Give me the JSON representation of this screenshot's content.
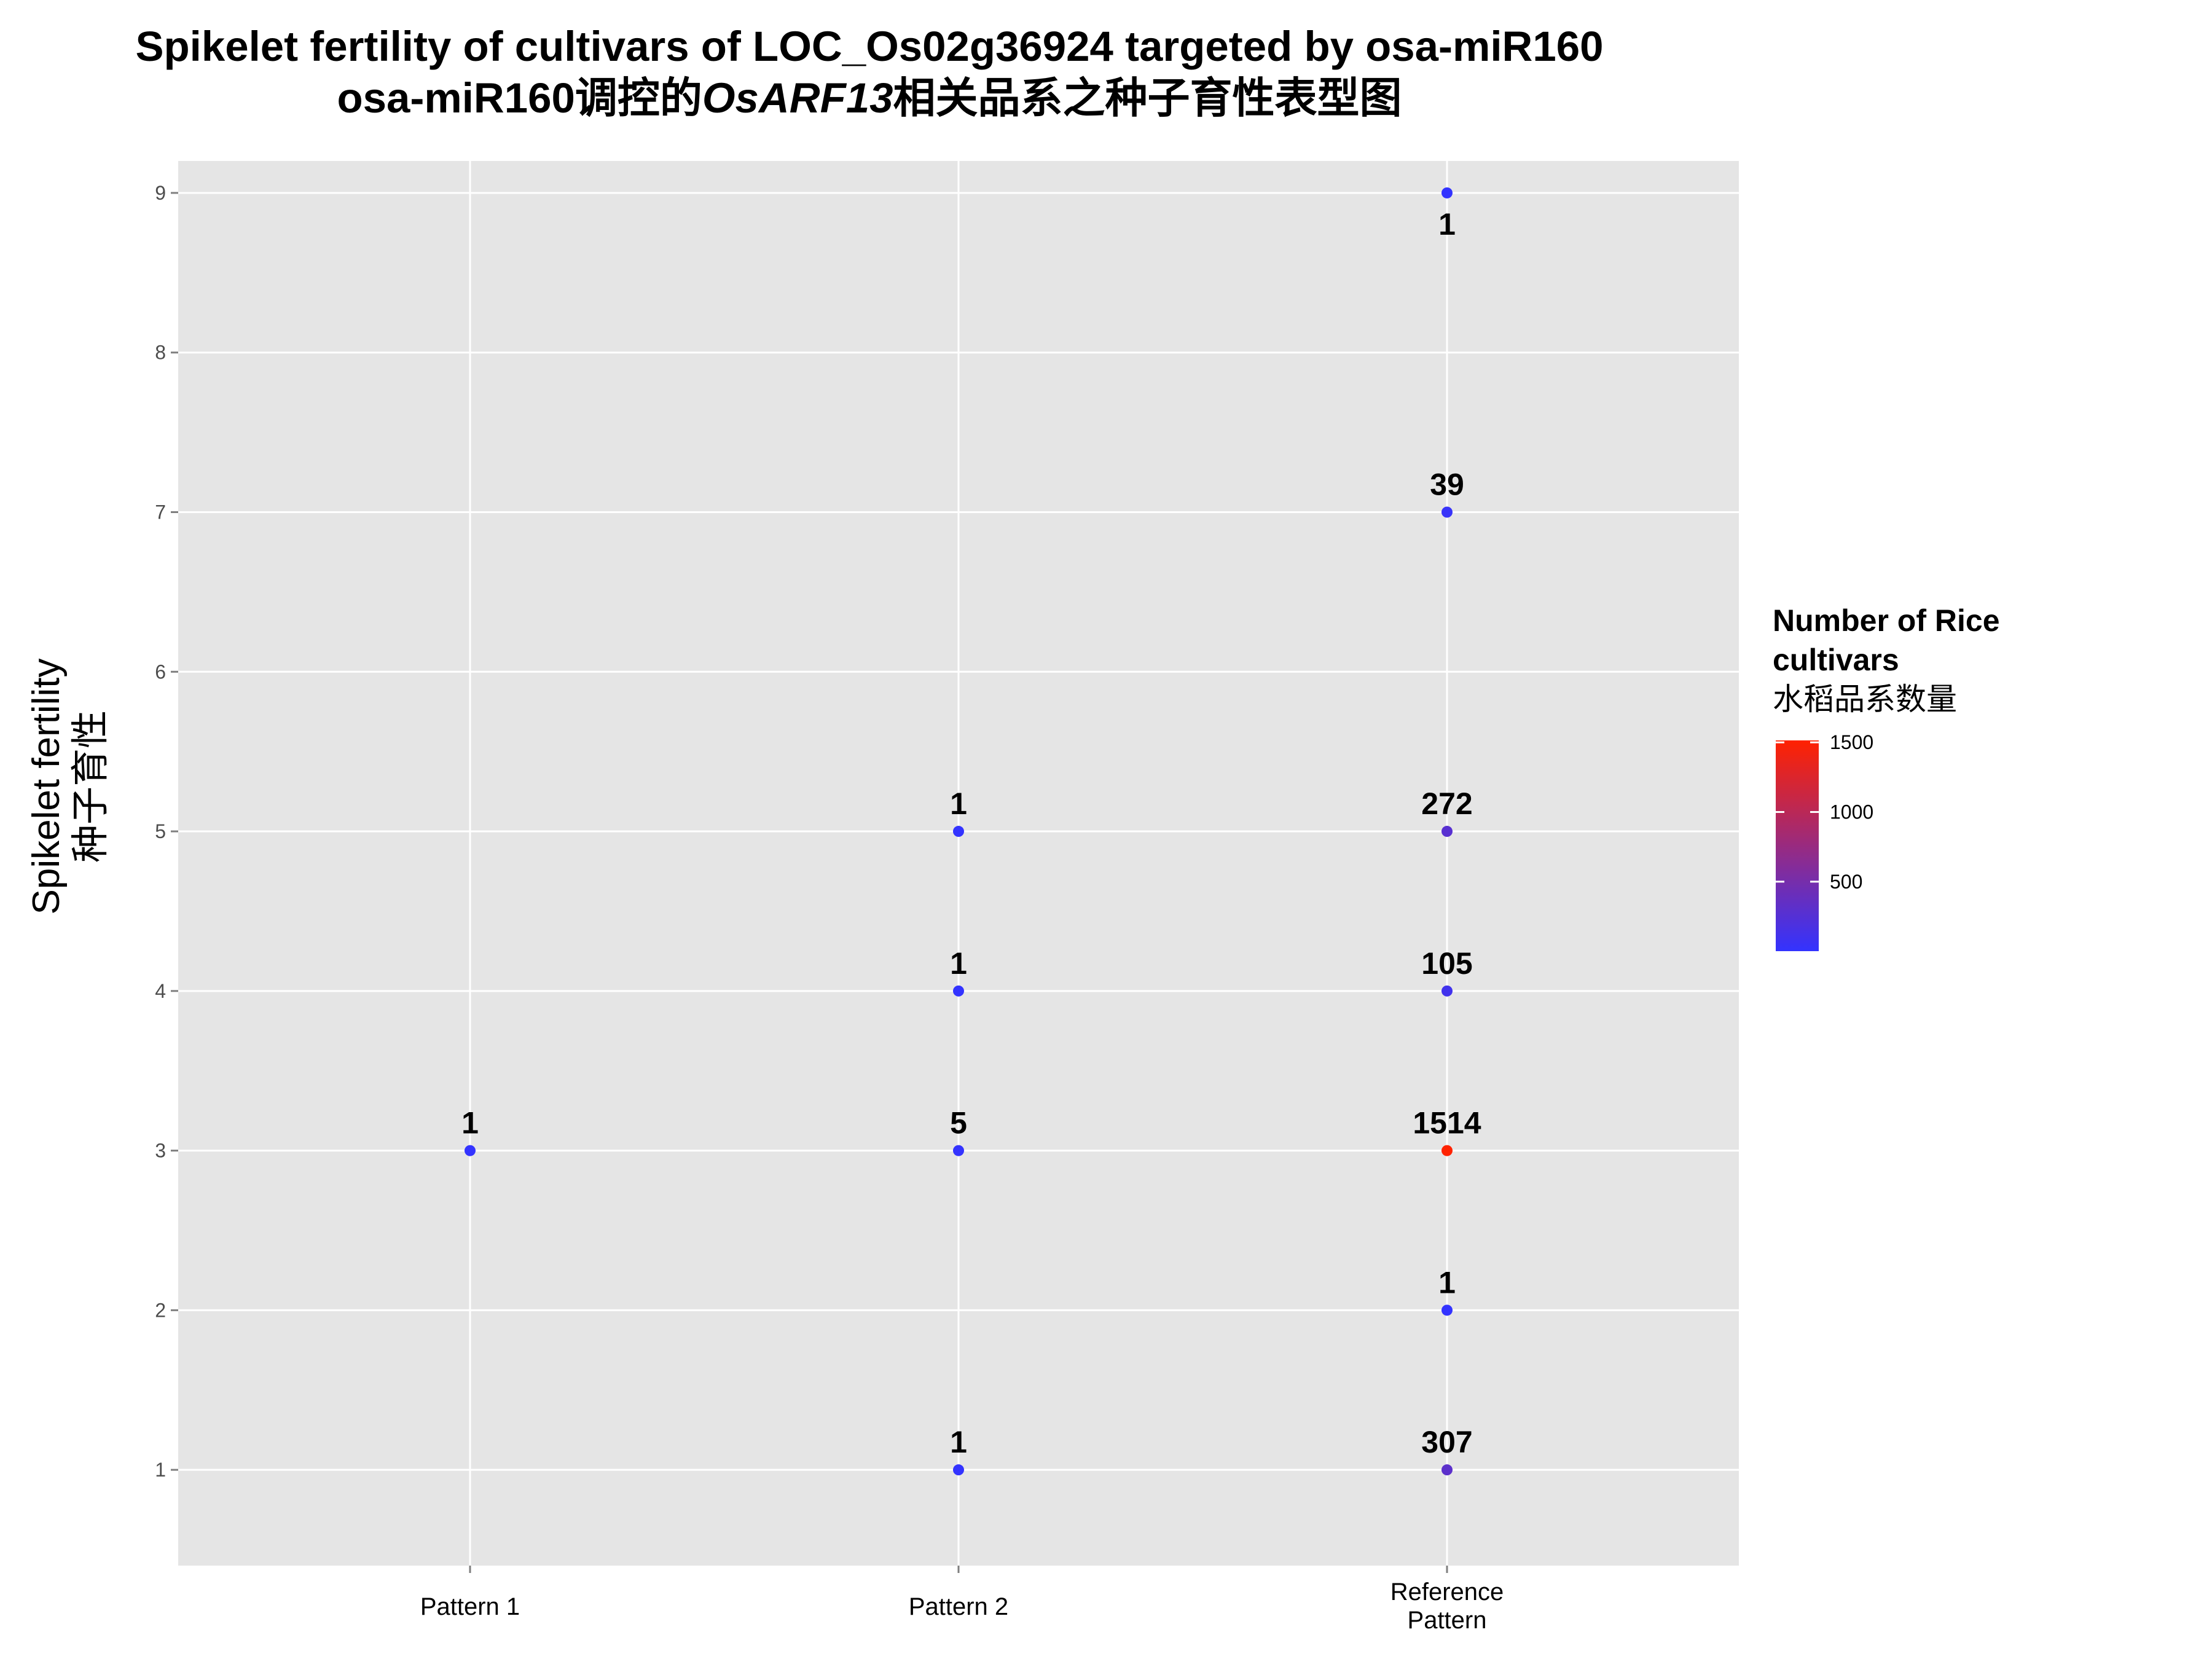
{
  "title_line1": "Spikelet fertility of cultivars of LOC_Os02g36924 targeted by osa-miR160",
  "title_line2_prefix": "osa-miR160调控的",
  "title_line2_gene": "OsARF13",
  "title_line2_suffix": "相关品系之种子育性表型图",
  "ylabel_en": "Spikelet fertility",
  "ylabel_zh": "种子育性",
  "legend_title_line1": "Number of Rice",
  "legend_title_line2": "cultivars",
  "legend_title_line3": "水稻品系数量",
  "chart_data": {
    "type": "scatter",
    "categories": [
      "Pattern 1",
      "Pattern 2",
      "Reference\nPattern"
    ],
    "ylim": [
      0.4,
      9.2
    ],
    "yticks": [
      1,
      2,
      3,
      4,
      5,
      6,
      7,
      8,
      9
    ],
    "grid": true,
    "legend_position": "right",
    "color_scale": {
      "low": "#3333ff",
      "high": "#ff2200",
      "min": 1,
      "max": 1514,
      "ticks": [
        500,
        1000,
        1500
      ]
    },
    "points": [
      {
        "category": "Pattern 1",
        "y": 3,
        "count": 1,
        "label_pos": "above"
      },
      {
        "category": "Pattern 2",
        "y": 1,
        "count": 1,
        "label_pos": "above"
      },
      {
        "category": "Pattern 2",
        "y": 3,
        "count": 5,
        "label_pos": "above"
      },
      {
        "category": "Pattern 2",
        "y": 4,
        "count": 1,
        "label_pos": "above"
      },
      {
        "category": "Pattern 2",
        "y": 5,
        "count": 1,
        "label_pos": "above"
      },
      {
        "category": "Reference\nPattern",
        "y": 1,
        "count": 307,
        "label_pos": "above"
      },
      {
        "category": "Reference\nPattern",
        "y": 2,
        "count": 1,
        "label_pos": "above"
      },
      {
        "category": "Reference\nPattern",
        "y": 3,
        "count": 1514,
        "label_pos": "above"
      },
      {
        "category": "Reference\nPattern",
        "y": 4,
        "count": 105,
        "label_pos": "above"
      },
      {
        "category": "Reference\nPattern",
        "y": 5,
        "count": 272,
        "label_pos": "above"
      },
      {
        "category": "Reference\nPattern",
        "y": 7,
        "count": 39,
        "label_pos": "above"
      },
      {
        "category": "Reference\nPattern",
        "y": 9,
        "count": 1,
        "label_pos": "below"
      }
    ]
  }
}
